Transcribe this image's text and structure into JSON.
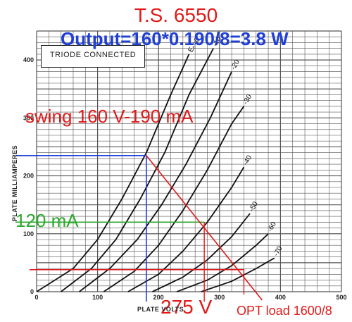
{
  "chart_data": {
    "type": "line",
    "title": "T.S. 6550",
    "subtitle": "Output=160*0.190/8=3.8 W",
    "box_label": "TRIODE CONNECTED",
    "xlabel": "PLATE VOLTS",
    "ylabel": "PLATE MILLIAMPERES",
    "xlim": [
      0,
      500
    ],
    "ylim": [
      0,
      450
    ],
    "x_ticks": [
      0,
      100,
      200,
      300,
      400,
      500
    ],
    "y_ticks": [
      0,
      100,
      200,
      300,
      400
    ],
    "grid": true,
    "series": [
      {
        "name": "Ec=0",
        "label": "Eₙ=0",
        "x": [
          0,
          60,
          100,
          140,
          180,
          220,
          250
        ],
        "y": [
          0,
          40,
          90,
          160,
          240,
          340,
          410
        ]
      },
      {
        "name": "-10",
        "label": "-10",
        "x": [
          40,
          90,
          130,
          170,
          210,
          250,
          290
        ],
        "y": [
          0,
          40,
          90,
          160,
          240,
          340,
          420
        ]
      },
      {
        "name": "-20",
        "label": "-20",
        "x": [
          70,
          120,
          165,
          205,
          245,
          285,
          320
        ],
        "y": [
          0,
          40,
          90,
          150,
          220,
          300,
          380
        ]
      },
      {
        "name": "-30",
        "label": "-30",
        "x": [
          110,
          160,
          200,
          240,
          280,
          320,
          340
        ],
        "y": [
          0,
          35,
          80,
          140,
          210,
          290,
          320
        ]
      },
      {
        "name": "-40",
        "label": "-40",
        "x": [
          150,
          200,
          240,
          280,
          320,
          340
        ],
        "y": [
          0,
          30,
          70,
          120,
          180,
          215
        ]
      },
      {
        "name": "-50",
        "label": "-50",
        "x": [
          190,
          240,
          280,
          320,
          350
        ],
        "y": [
          0,
          25,
          55,
          95,
          135
        ]
      },
      {
        "name": "-60",
        "label": "-60",
        "x": [
          230,
          280,
          320,
          360,
          380
        ],
        "y": [
          0,
          20,
          45,
          80,
          100
        ]
      },
      {
        "name": "-70",
        "label": "-70",
        "x": [
          270,
          320,
          360,
          390
        ],
        "y": [
          0,
          18,
          40,
          58
        ]
      }
    ],
    "load_line": {
      "name": "OPT load 1600/8",
      "x": [
        180,
        370
      ],
      "y": [
        235,
        0
      ]
    },
    "markers": {
      "vertical_blue_x": 180,
      "horizontal_blue_y": 235,
      "horizontal_green_y": 120,
      "horizontal_red_y": 38,
      "vertical_red_x1": 275,
      "vertical_red_x2": 340
    },
    "colors": {
      "curves": "#111111",
      "grid": "#555555",
      "load_line": "#e11919",
      "blue": "#1f3fd6",
      "green": "#2fa82f"
    }
  },
  "annotations": {
    "swing": "swing 160 V-190 mA",
    "ma120": "120 mA",
    "v275": "275 V",
    "opt_load": "OPT load 1600/8"
  }
}
